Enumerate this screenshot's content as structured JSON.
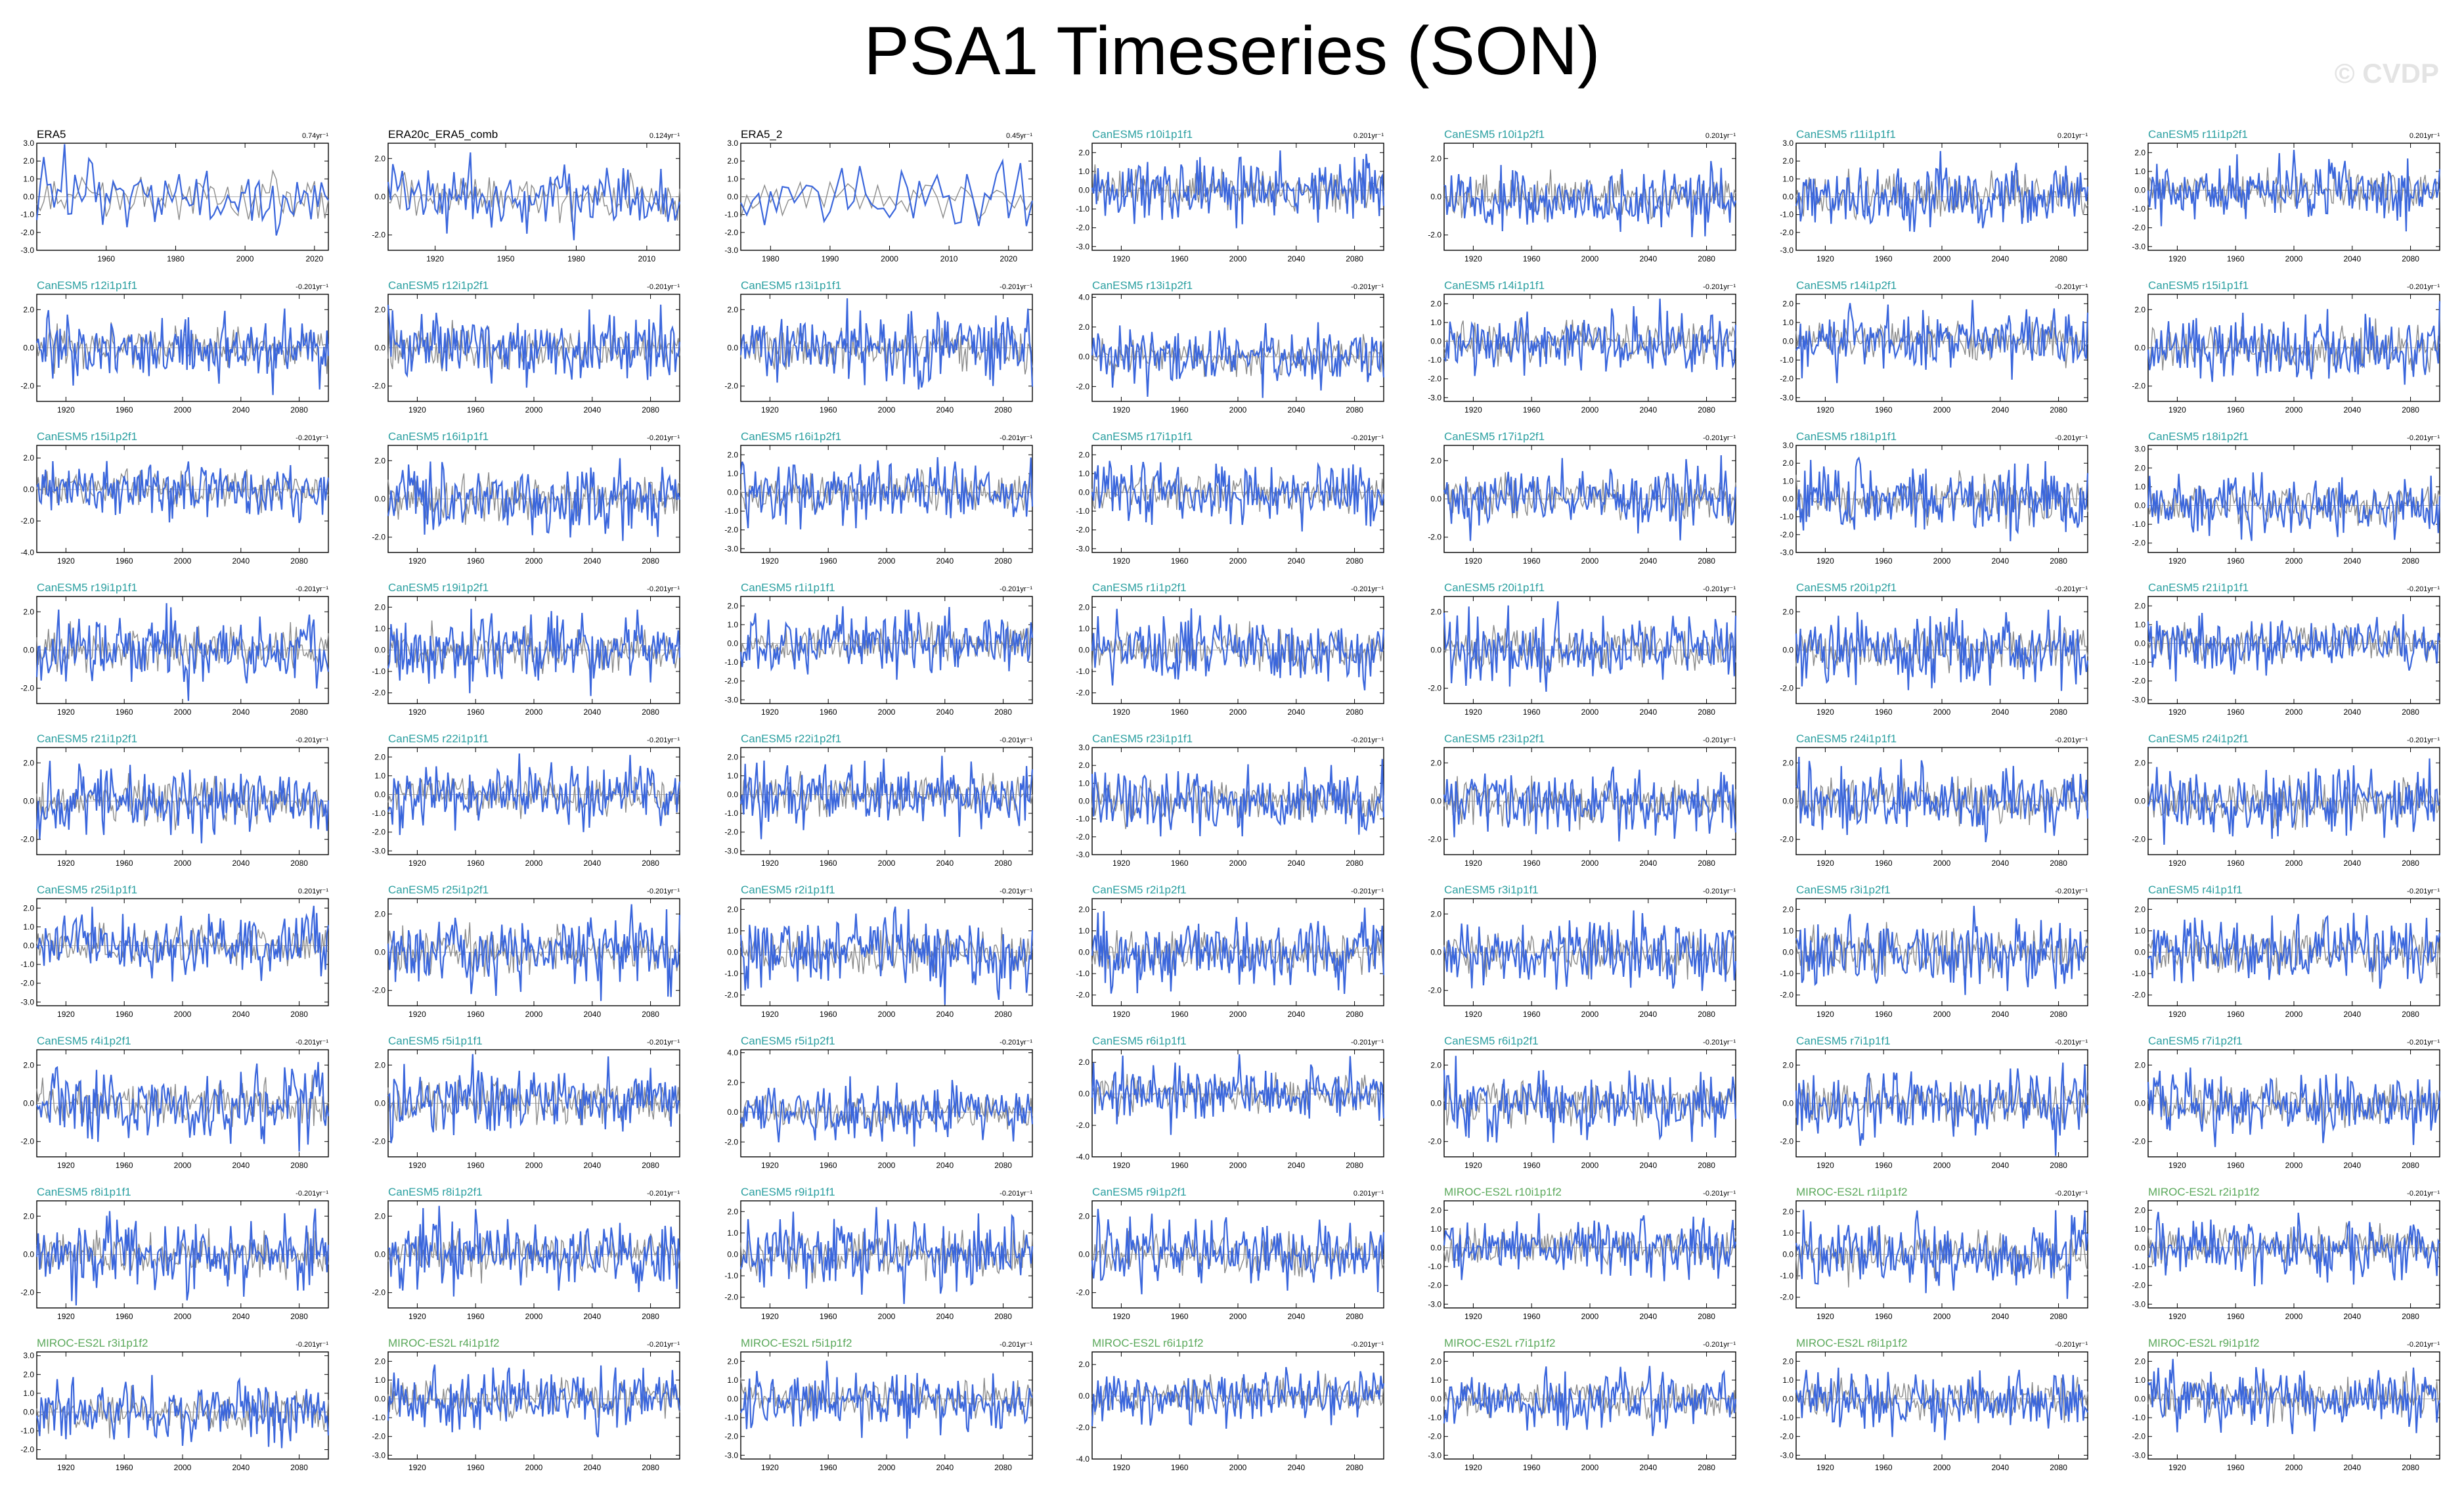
{
  "title": "PSA1 Timeseries (SON)",
  "watermark": "© CVDP",
  "colors": {
    "series": "#3a66dc",
    "reference": "#8a8a8a",
    "canesm_label": "#2a9fa0",
    "miroc_label": "#5aa85a"
  },
  "chart_data": {
    "type": "line",
    "layout": {
      "rows": 9,
      "cols": 7
    },
    "default_x": {
      "range": [
        1900,
        2100
      ],
      "ticks": [
        1920,
        1960,
        2000,
        2040,
        2080
      ]
    },
    "panels": [
      {
        "name": "ERA5",
        "trend": "0.74yr⁻¹",
        "x": {
          "range": [
            1940,
            2024
          ],
          "ticks": [
            1960,
            1980,
            2000,
            2020
          ]
        },
        "ylim": [
          -3,
          3
        ],
        "yticks": [
          "3.0",
          "2.0",
          "1.0",
          "0.0",
          "-1.0",
          "-2.0",
          "-3.0"
        ],
        "seed": 11
      },
      {
        "name": "ERA20c_ERA5_comb",
        "trend": "0.124yr⁻¹",
        "x": {
          "range": [
            1900,
            2024
          ],
          "ticks": [
            1920,
            1950,
            1980,
            2010
          ]
        },
        "ylim": [
          -2.8,
          2.8
        ],
        "yticks": [
          "2.0",
          "0.0",
          "-2.0"
        ],
        "seed": 12
      },
      {
        "name": "ERA5_2",
        "trend": "0.45yr⁻¹",
        "x": {
          "range": [
            1975,
            2024
          ],
          "ticks": [
            1980,
            1990,
            2000,
            2010,
            2020
          ]
        },
        "ylim": [
          -3,
          3
        ],
        "yticks": [
          "3.0",
          "2.0",
          "1.0",
          "0.0",
          "-1.0",
          "-2.0",
          "-3.0"
        ],
        "seed": 13
      },
      {
        "name": "CanESM5 r10i1p1f1",
        "trend": "0.201yr⁻¹",
        "yticks": [
          "2.0",
          "1.0",
          "0.0",
          "-1.0",
          "-2.0",
          "-3.0"
        ],
        "ylim": [
          -3.2,
          2.5
        ],
        "seed": 14
      },
      {
        "name": "CanESM5 r10i1p2f1",
        "trend": "0.201yr⁻¹",
        "yticks": [
          "2.0",
          "0.0",
          "-2.0"
        ],
        "ylim": [
          -2.8,
          2.8
        ],
        "seed": 15
      },
      {
        "name": "CanESM5 r11i1p1f1",
        "trend": "0.201yr⁻¹",
        "yticks": [
          "3.0",
          "2.0",
          "1.0",
          "0.0",
          "-1.0",
          "-2.0",
          "-3.0"
        ],
        "ylim": [
          -3,
          3
        ],
        "seed": 16
      },
      {
        "name": "CanESM5 r11i1p2f1",
        "trend": "0.201yr⁻¹",
        "yticks": [
          "2.0",
          "1.0",
          "0.0",
          "-1.0",
          "-2.0",
          "-3.0"
        ],
        "ylim": [
          -3.2,
          2.5
        ],
        "seed": 17
      },
      {
        "name": "CanESM5 r12i1p1f1",
        "trend": "-0.201yr⁻¹",
        "yticks": [
          "2.0",
          "0.0",
          "-2.0"
        ],
        "ylim": [
          -2.8,
          2.8
        ],
        "seed": 21
      },
      {
        "name": "CanESM5 r12i1p2f1",
        "trend": "-0.201yr⁻¹",
        "yticks": [
          "2.0",
          "0.0",
          "-2.0"
        ],
        "ylim": [
          -2.8,
          2.8
        ],
        "seed": 22
      },
      {
        "name": "CanESM5 r13i1p1f1",
        "trend": "-0.201yr⁻¹",
        "yticks": [
          "2.0",
          "0.0",
          "-2.0"
        ],
        "ylim": [
          -2.8,
          2.8
        ],
        "seed": 23
      },
      {
        "name": "CanESM5 r13i1p2f1",
        "trend": "-0.201yr⁻¹",
        "yticks": [
          "4.0",
          "2.0",
          "0.0",
          "-2.0"
        ],
        "ylim": [
          -3,
          4.2
        ],
        "seed": 24
      },
      {
        "name": "CanESM5 r14i1p1f1",
        "trend": "-0.201yr⁻¹",
        "yticks": [
          "2.0",
          "1.0",
          "0.0",
          "-1.0",
          "-2.0",
          "-3.0"
        ],
        "ylim": [
          -3.2,
          2.5
        ],
        "seed": 25
      },
      {
        "name": "CanESM5 r14i1p2f1",
        "trend": "-0.201yr⁻¹",
        "yticks": [
          "2.0",
          "1.0",
          "0.0",
          "-1.0",
          "-2.0",
          "-3.0"
        ],
        "ylim": [
          -3.2,
          2.5
        ],
        "seed": 26
      },
      {
        "name": "CanESM5 r15i1p1f1",
        "trend": "-0.201yr⁻¹",
        "yticks": [
          "2.0",
          "0.0",
          "-2.0"
        ],
        "ylim": [
          -2.8,
          2.8
        ],
        "seed": 27
      },
      {
        "name": "CanESM5 r15i1p2f1",
        "trend": "-0.201yr⁻¹",
        "yticks": [
          "2.0",
          "0.0",
          "-2.0",
          "-4.0"
        ],
        "ylim": [
          -4,
          2.8
        ],
        "seed": 31
      },
      {
        "name": "CanESM5 r16i1p1f1",
        "trend": "-0.201yr⁻¹",
        "yticks": [
          "2.0",
          "0.0",
          "-2.0"
        ],
        "ylim": [
          -2.8,
          2.8
        ],
        "seed": 32
      },
      {
        "name": "CanESM5 r16i1p2f1",
        "trend": "-0.201yr⁻¹",
        "yticks": [
          "2.0",
          "1.0",
          "0.0",
          "-1.0",
          "-2.0",
          "-3.0"
        ],
        "ylim": [
          -3.2,
          2.5
        ],
        "seed": 33
      },
      {
        "name": "CanESM5 r17i1p1f1",
        "trend": "-0.201yr⁻¹",
        "yticks": [
          "2.0",
          "1.0",
          "0.0",
          "-1.0",
          "-2.0",
          "-3.0"
        ],
        "ylim": [
          -3.2,
          2.5
        ],
        "seed": 34
      },
      {
        "name": "CanESM5 r17i1p2f1",
        "trend": "-0.201yr⁻¹",
        "yticks": [
          "2.0",
          "0.0",
          "-2.0"
        ],
        "ylim": [
          -2.8,
          2.8
        ],
        "seed": 35
      },
      {
        "name": "CanESM5 r18i1p1f1",
        "trend": "-0.201yr⁻¹",
        "yticks": [
          "3.0",
          "2.0",
          "1.0",
          "0.0",
          "-1.0",
          "-2.0",
          "-3.0"
        ],
        "ylim": [
          -3,
          3
        ],
        "seed": 36
      },
      {
        "name": "CanESM5 r18i1p2f1",
        "trend": "-0.201yr⁻¹",
        "yticks": [
          "3.0",
          "2.0",
          "1.0",
          "0.0",
          "-1.0",
          "-2.0"
        ],
        "ylim": [
          -2.5,
          3.2
        ],
        "seed": 37
      },
      {
        "name": "CanESM5 r19i1p1f1",
        "trend": "-0.201yr⁻¹",
        "yticks": [
          "2.0",
          "0.0",
          "-2.0"
        ],
        "ylim": [
          -2.8,
          2.8
        ],
        "seed": 41
      },
      {
        "name": "CanESM5 r19i1p2f1",
        "trend": "-0.201yr⁻¹",
        "yticks": [
          "2.0",
          "1.0",
          "0.0",
          "-1.0",
          "-2.0"
        ],
        "ylim": [
          -2.5,
          2.5
        ],
        "seed": 42
      },
      {
        "name": "CanESM5 r1i1p1f1",
        "trend": "-0.201yr⁻¹",
        "yticks": [
          "2.0",
          "1.0",
          "0.0",
          "-1.0",
          "-2.0",
          "-3.0"
        ],
        "ylim": [
          -3.2,
          2.5
        ],
        "seed": 43
      },
      {
        "name": "CanESM5 r1i1p2f1",
        "trend": "-0.201yr⁻¹",
        "yticks": [
          "2.0",
          "1.0",
          "0.0",
          "-1.0",
          "-2.0"
        ],
        "ylim": [
          -2.5,
          2.5
        ],
        "seed": 44
      },
      {
        "name": "CanESM5 r20i1p1f1",
        "trend": "-0.201yr⁻¹",
        "yticks": [
          "2.0",
          "0.0",
          "-2.0"
        ],
        "ylim": [
          -2.8,
          2.8
        ],
        "seed": 45
      },
      {
        "name": "CanESM5 r20i1p2f1",
        "trend": "-0.201yr⁻¹",
        "yticks": [
          "2.0",
          "0.0",
          "-2.0"
        ],
        "ylim": [
          -2.8,
          2.8
        ],
        "seed": 46
      },
      {
        "name": "CanESM5 r21i1p1f1",
        "trend": "-0.201yr⁻¹",
        "yticks": [
          "2.0",
          "1.0",
          "0.0",
          "-1.0",
          "-2.0",
          "-3.0"
        ],
        "ylim": [
          -3.2,
          2.5
        ],
        "seed": 47
      },
      {
        "name": "CanESM5 r21i1p2f1",
        "trend": "-0.201yr⁻¹",
        "yticks": [
          "2.0",
          "0.0",
          "-2.0"
        ],
        "ylim": [
          -2.8,
          2.8
        ],
        "seed": 51
      },
      {
        "name": "CanESM5 r22i1p1f1",
        "trend": "-0.201yr⁻¹",
        "yticks": [
          "2.0",
          "1.0",
          "0.0",
          "-1.0",
          "-2.0",
          "-3.0"
        ],
        "ylim": [
          -3.2,
          2.5
        ],
        "seed": 52
      },
      {
        "name": "CanESM5 r22i1p2f1",
        "trend": "-0.201yr⁻¹",
        "yticks": [
          "2.0",
          "1.0",
          "0.0",
          "-1.0",
          "-2.0",
          "-3.0"
        ],
        "ylim": [
          -3.2,
          2.5
        ],
        "seed": 53
      },
      {
        "name": "CanESM5 r23i1p1f1",
        "trend": "-0.201yr⁻¹",
        "yticks": [
          "3.0",
          "2.0",
          "1.0",
          "0.0",
          "-1.0",
          "-2.0",
          "-3.0"
        ],
        "ylim": [
          -3,
          3
        ],
        "seed": 54
      },
      {
        "name": "CanESM5 r23i1p2f1",
        "trend": "-0.201yr⁻¹",
        "yticks": [
          "2.0",
          "0.0",
          "-2.0"
        ],
        "ylim": [
          -2.8,
          2.8
        ],
        "seed": 55
      },
      {
        "name": "CanESM5 r24i1p1f1",
        "trend": "-0.201yr⁻¹",
        "yticks": [
          "2.0",
          "0.0",
          "-2.0"
        ],
        "ylim": [
          -2.8,
          2.8
        ],
        "seed": 56
      },
      {
        "name": "CanESM5 r24i1p2f1",
        "trend": "-0.201yr⁻¹",
        "yticks": [
          "2.0",
          "0.0",
          "-2.0"
        ],
        "ylim": [
          -2.8,
          2.8
        ],
        "seed": 57
      },
      {
        "name": "CanESM5 r25i1p1f1",
        "trend": "0.201yr⁻¹",
        "yticks": [
          "2.0",
          "1.0",
          "0.0",
          "-1.0",
          "-2.0",
          "-3.0"
        ],
        "ylim": [
          -3.2,
          2.5
        ],
        "seed": 61
      },
      {
        "name": "CanESM5 r25i1p2f1",
        "trend": "-0.201yr⁻¹",
        "yticks": [
          "2.0",
          "0.0",
          "-2.0"
        ],
        "ylim": [
          -2.8,
          2.8
        ],
        "seed": 62
      },
      {
        "name": "CanESM5 r2i1p1f1",
        "trend": "-0.201yr⁻¹",
        "yticks": [
          "2.0",
          "1.0",
          "0.0",
          "-1.0",
          "-2.0"
        ],
        "ylim": [
          -2.5,
          2.5
        ],
        "seed": 63
      },
      {
        "name": "CanESM5 r2i1p2f1",
        "trend": "-0.201yr⁻¹",
        "yticks": [
          "2.0",
          "1.0",
          "0.0",
          "-1.0",
          "-2.0"
        ],
        "ylim": [
          -2.5,
          2.5
        ],
        "seed": 64
      },
      {
        "name": "CanESM5 r3i1p1f1",
        "trend": "-0.201yr⁻¹",
        "yticks": [
          "2.0",
          "0.0",
          "-2.0"
        ],
        "ylim": [
          -2.8,
          2.8
        ],
        "seed": 65
      },
      {
        "name": "CanESM5 r3i1p2f1",
        "trend": "-0.201yr⁻¹",
        "yticks": [
          "2.0",
          "1.0",
          "0.0",
          "-1.0",
          "-2.0"
        ],
        "ylim": [
          -2.5,
          2.5
        ],
        "seed": 66
      },
      {
        "name": "CanESM5 r4i1p1f1",
        "trend": "-0.201yr⁻¹",
        "yticks": [
          "2.0",
          "1.0",
          "0.0",
          "-1.0",
          "-2.0"
        ],
        "ylim": [
          -2.5,
          2.5
        ],
        "seed": 67
      },
      {
        "name": "CanESM5 r4i1p2f1",
        "trend": "-0.201yr⁻¹",
        "yticks": [
          "2.0",
          "0.0",
          "-2.0"
        ],
        "ylim": [
          -2.8,
          2.8
        ],
        "seed": 71
      },
      {
        "name": "CanESM5 r5i1p1f1",
        "trend": "-0.201yr⁻¹",
        "yticks": [
          "2.0",
          "0.0",
          "-2.0"
        ],
        "ylim": [
          -2.8,
          2.8
        ],
        "seed": 72
      },
      {
        "name": "CanESM5 r5i1p2f1",
        "trend": "-0.201yr⁻¹",
        "yticks": [
          "4.0",
          "2.0",
          "0.0",
          "-2.0"
        ],
        "ylim": [
          -3,
          4.2
        ],
        "seed": 73
      },
      {
        "name": "CanESM5 r6i1p1f1",
        "trend": "-0.201yr⁻¹",
        "yticks": [
          "2.0",
          "0.0",
          "-2.0",
          "-4.0"
        ],
        "ylim": [
          -4,
          2.8
        ],
        "seed": 74
      },
      {
        "name": "CanESM5 r6i1p2f1",
        "trend": "-0.201yr⁻¹",
        "yticks": [
          "2.0",
          "0.0",
          "-2.0"
        ],
        "ylim": [
          -2.8,
          2.8
        ],
        "seed": 75
      },
      {
        "name": "CanESM5 r7i1p1f1",
        "trend": "-0.201yr⁻¹",
        "yticks": [
          "2.0",
          "0.0",
          "-2.0"
        ],
        "ylim": [
          -2.8,
          2.8
        ],
        "seed": 76
      },
      {
        "name": "CanESM5 r7i1p2f1",
        "trend": "-0.201yr⁻¹",
        "yticks": [
          "2.0",
          "0.0",
          "-2.0"
        ],
        "ylim": [
          -2.8,
          2.8
        ],
        "seed": 77
      },
      {
        "name": "CanESM5 r8i1p1f1",
        "trend": "-0.201yr⁻¹",
        "yticks": [
          "2.0",
          "0.0",
          "-2.0"
        ],
        "ylim": [
          -2.8,
          2.8
        ],
        "seed": 81
      },
      {
        "name": "CanESM5 r8i1p2f1",
        "trend": "-0.201yr⁻¹",
        "yticks": [
          "2.0",
          "0.0",
          "-2.0"
        ],
        "ylim": [
          -2.8,
          2.8
        ],
        "seed": 82
      },
      {
        "name": "CanESM5 r9i1p1f1",
        "trend": "-0.201yr⁻¹",
        "yticks": [
          "2.0",
          "1.0",
          "0.0",
          "-1.0",
          "-2.0"
        ],
        "ylim": [
          -2.5,
          2.5
        ],
        "seed": 83
      },
      {
        "name": "CanESM5 r9i1p2f1",
        "trend": "0.201yr⁻¹",
        "yticks": [
          "2.0",
          "0.0",
          "-2.0"
        ],
        "ylim": [
          -2.8,
          2.8
        ],
        "seed": 84
      },
      {
        "name": "MIROC-ES2L r10i1p1f2",
        "trend": "-0.201yr⁻¹",
        "yticks": [
          "2.0",
          "1.0",
          "0.0",
          "-1.0",
          "-2.0",
          "-3.0"
        ],
        "ylim": [
          -3.2,
          2.5
        ],
        "seed": 85
      },
      {
        "name": "MIROC-ES2L r1i1p1f2",
        "trend": "-0.201yr⁻¹",
        "yticks": [
          "2.0",
          "1.0",
          "0.0",
          "-1.0",
          "-2.0"
        ],
        "ylim": [
          -2.5,
          2.5
        ],
        "seed": 86
      },
      {
        "name": "MIROC-ES2L r2i1p1f2",
        "trend": "-0.201yr⁻¹",
        "yticks": [
          "2.0",
          "1.0",
          "0.0",
          "-1.0",
          "-2.0",
          "-3.0"
        ],
        "ylim": [
          -3.2,
          2.5
        ],
        "seed": 87
      },
      {
        "name": "MIROC-ES2L r3i1p1f2",
        "trend": "-0.201yr⁻¹",
        "yticks": [
          "3.0",
          "2.0",
          "1.0",
          "0.0",
          "-1.0",
          "-2.0"
        ],
        "ylim": [
          -2.5,
          3.2
        ],
        "seed": 91
      },
      {
        "name": "MIROC-ES2L r4i1p1f2",
        "trend": "-0.201yr⁻¹",
        "yticks": [
          "2.0",
          "1.0",
          "0.0",
          "-1.0",
          "-2.0",
          "-3.0"
        ],
        "ylim": [
          -3.2,
          2.5
        ],
        "seed": 92
      },
      {
        "name": "MIROC-ES2L r5i1p1f2",
        "trend": "-0.201yr⁻¹",
        "yticks": [
          "2.0",
          "1.0",
          "0.0",
          "-1.0",
          "-2.0",
          "-3.0"
        ],
        "ylim": [
          -3.2,
          2.5
        ],
        "seed": 93
      },
      {
        "name": "MIROC-ES2L r6i1p1f2",
        "trend": "-0.201yr⁻¹",
        "yticks": [
          "2.0",
          "0.0",
          "-2.0",
          "-4.0"
        ],
        "ylim": [
          -4,
          2.8
        ],
        "seed": 94
      },
      {
        "name": "MIROC-ES2L r7i1p1f2",
        "trend": "-0.201yr⁻¹",
        "yticks": [
          "2.0",
          "1.0",
          "0.0",
          "-1.0",
          "-2.0",
          "-3.0"
        ],
        "ylim": [
          -3.2,
          2.5
        ],
        "seed": 95
      },
      {
        "name": "MIROC-ES2L r8i1p1f2",
        "trend": "-0.201yr⁻¹",
        "yticks": [
          "2.0",
          "1.0",
          "0.0",
          "-1.0",
          "-2.0",
          "-3.0"
        ],
        "ylim": [
          -3.2,
          2.5
        ],
        "seed": 96
      },
      {
        "name": "MIROC-ES2L r9i1p1f2",
        "trend": "-0.201yr⁻¹",
        "yticks": [
          "2.0",
          "1.0",
          "0.0",
          "-1.0",
          "-2.0",
          "-3.0"
        ],
        "ylim": [
          -3.2,
          2.5
        ],
        "seed": 97
      }
    ]
  }
}
